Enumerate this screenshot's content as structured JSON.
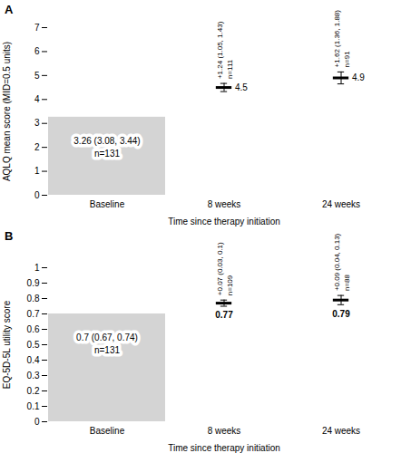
{
  "chart_data": [
    {
      "panel_label": "A",
      "type": "bar",
      "categories": [
        "Baseline",
        "8 weeks",
        "24 weeks"
      ],
      "x_label": "Time since therapy initiation",
      "y_label": "AQLQ mean score (MID=0.5 units)",
      "ylim": [
        0,
        7
      ],
      "yticks": [
        0,
        1,
        2,
        3,
        4,
        5,
        6,
        7
      ],
      "data_labels": true,
      "series": [
        {
          "type": "bar",
          "color": "#d4d4d4",
          "values": [
            3.26,
            null,
            null
          ],
          "value_labels": [
            "3.26 (3.08, 3.44)",
            null,
            null
          ]
        },
        {
          "type": "scatter",
          "marker": "dash",
          "color": "#000000",
          "values": [
            null,
            4.5,
            4.9
          ],
          "value_labels": [
            null,
            "4.5",
            "4.9"
          ],
          "error_low": [
            null,
            4.33,
            4.65
          ],
          "error_high": [
            null,
            4.67,
            5.15
          ]
        }
      ],
      "n_labels": [
        "n=131",
        "n=111",
        "n=91"
      ],
      "change_labels": [
        null,
        "+1.24 (1.05, 1.43)",
        "+1.62 (1.36, 1.88)"
      ]
    },
    {
      "panel_label": "B",
      "type": "bar",
      "categories": [
        "Baseline",
        "8 weeks",
        "24 weeks"
      ],
      "x_label": "Time since therapy initiation",
      "y_label": "EQ-5D-5L utility score",
      "ylim": [
        0,
        1
      ],
      "yticks": [
        0,
        0.1,
        0.2,
        0.3,
        0.4,
        0.5,
        0.6,
        0.7,
        0.8,
        0.9,
        1
      ],
      "data_labels": true,
      "series": [
        {
          "type": "bar",
          "color": "#d4d4d4",
          "values": [
            0.7,
            null,
            null
          ],
          "value_labels": [
            "0.7 (0.67, 0.74)",
            null,
            null
          ]
        },
        {
          "type": "scatter",
          "marker": "dash",
          "color": "#000000",
          "values": [
            null,
            0.77,
            0.79
          ],
          "value_labels": [
            null,
            "0.77",
            "0.79"
          ],
          "error_low": [
            null,
            0.75,
            0.76
          ],
          "error_high": [
            null,
            0.79,
            0.82
          ]
        }
      ],
      "n_labels": [
        "n=131",
        "n=109",
        "n=88"
      ],
      "change_labels": [
        null,
        "+0.07 (0.03, 0.1)",
        "+0.09 (0.04, 0.13)"
      ]
    }
  ]
}
